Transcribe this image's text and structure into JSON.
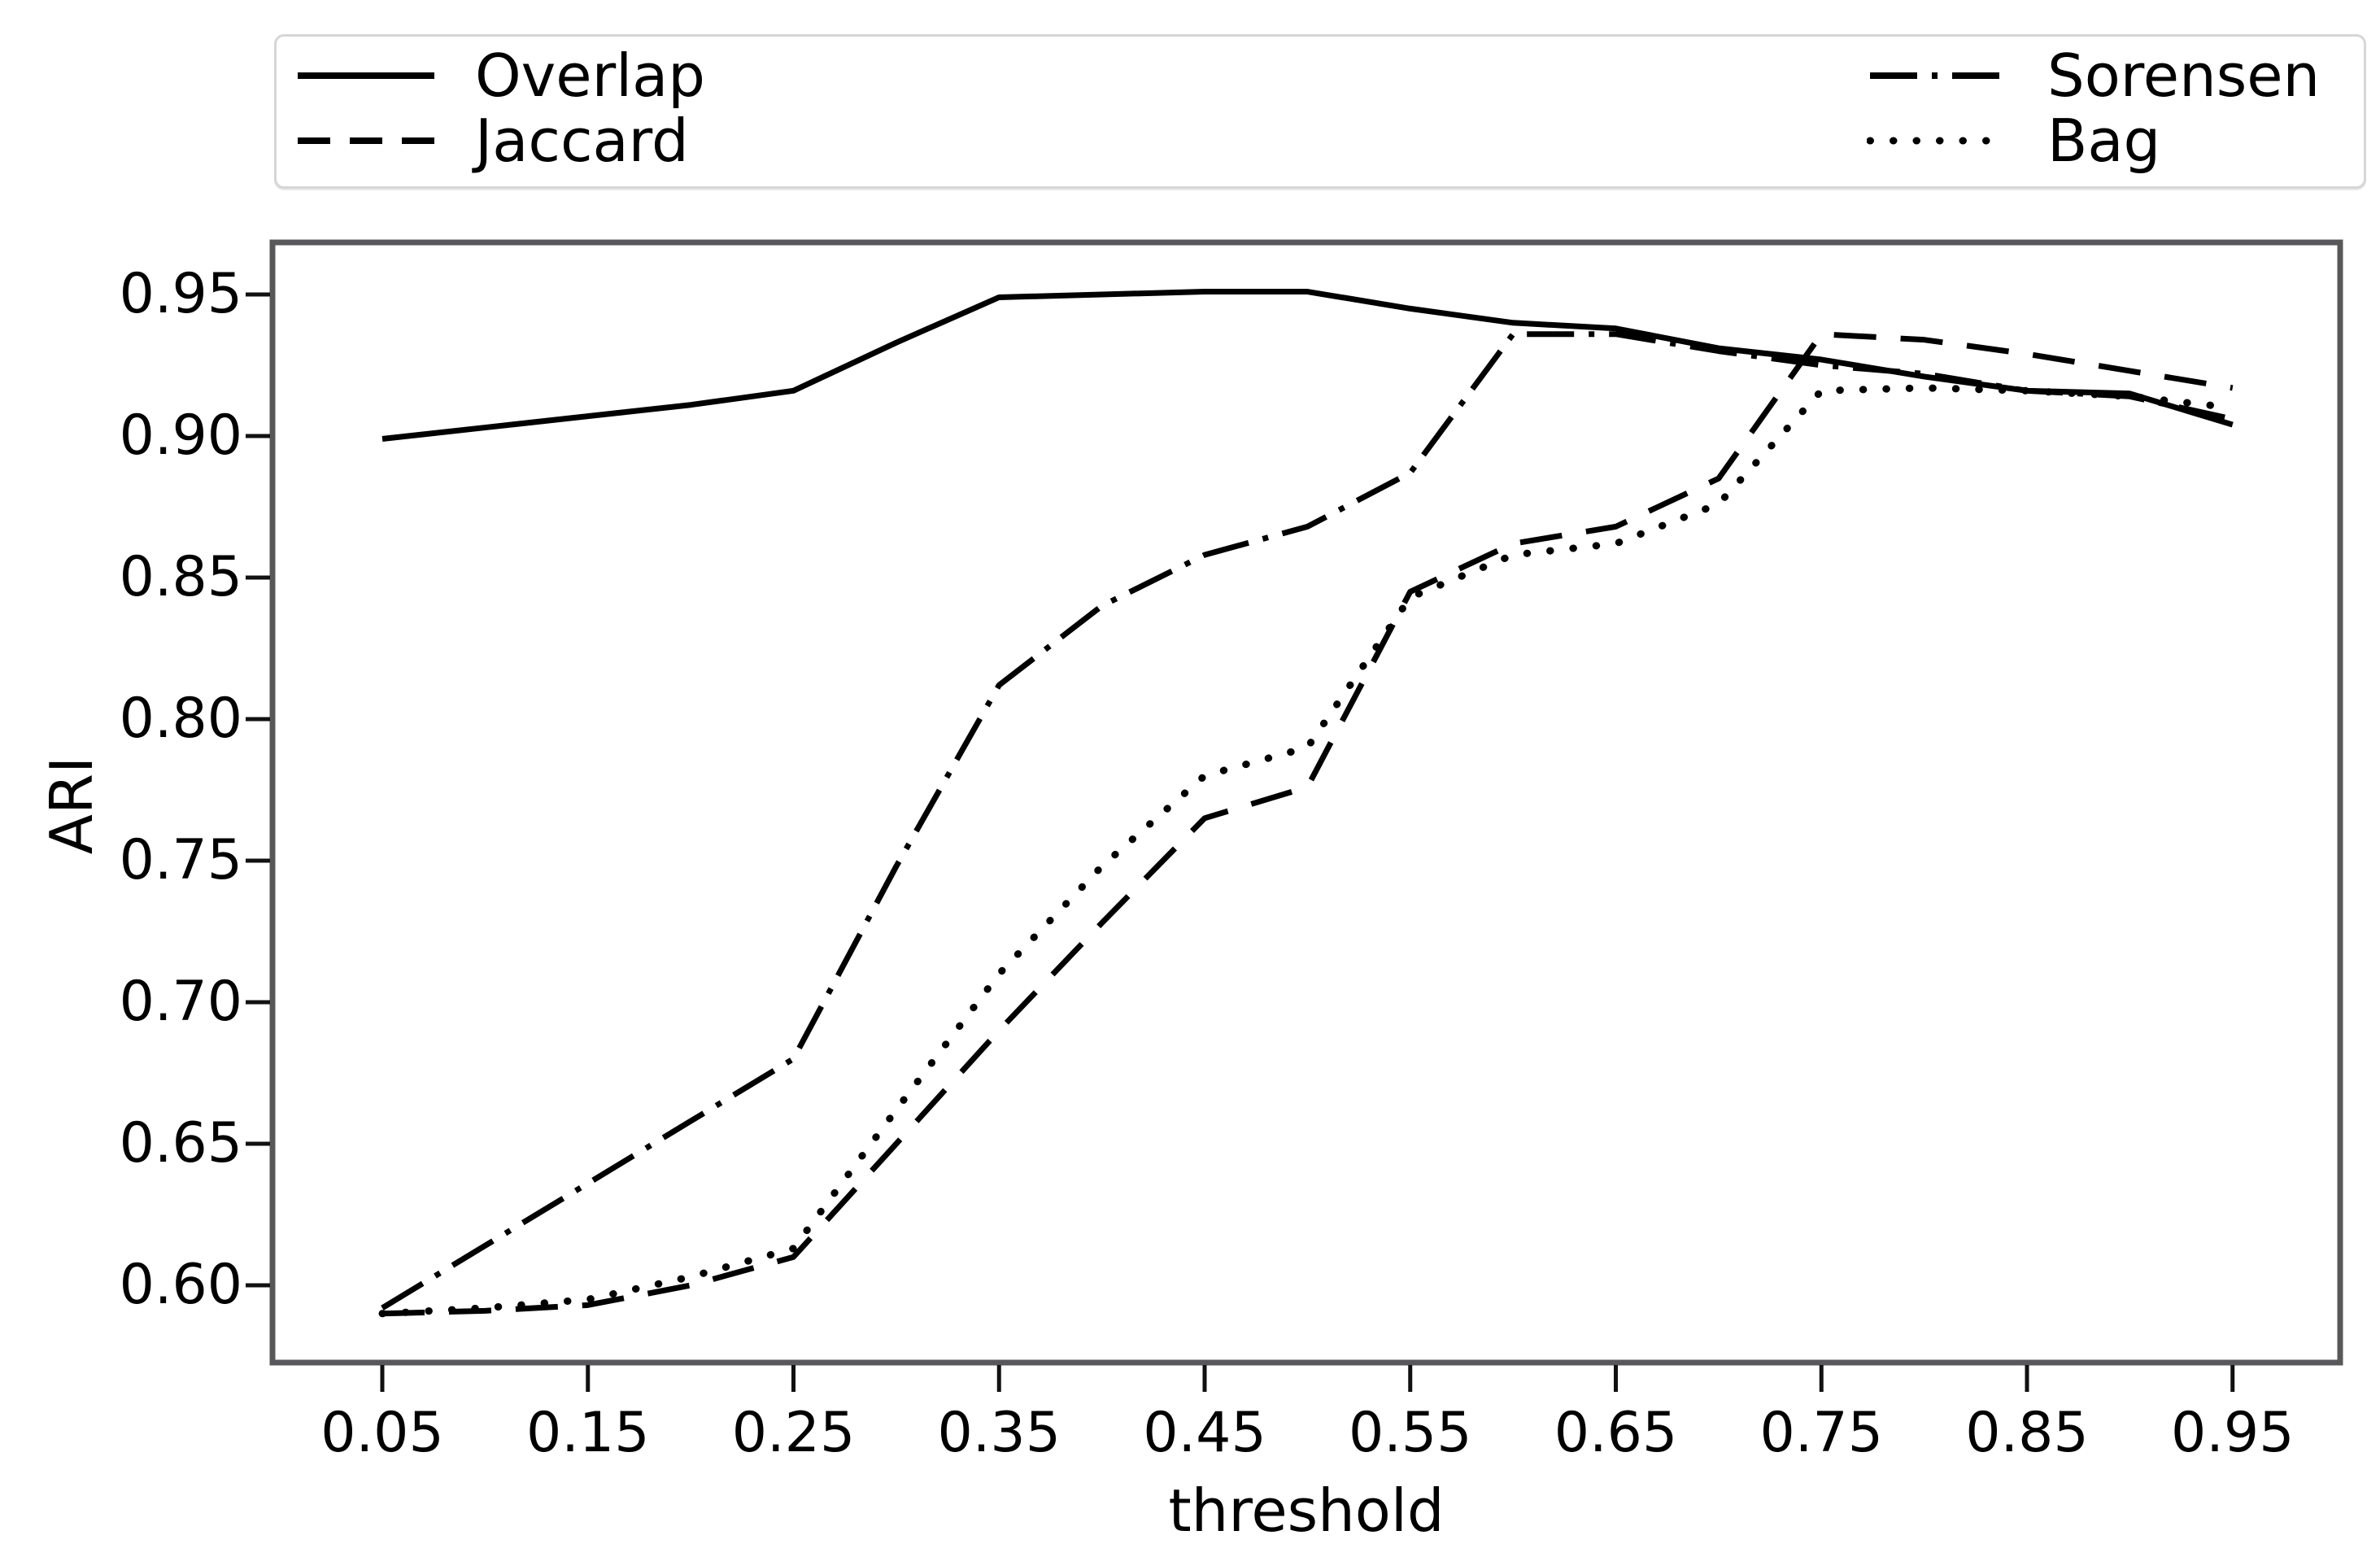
{
  "figure": {
    "background": "#ffffff",
    "line_color": "#000000",
    "frame_color": "#58585a"
  },
  "legend": {
    "items": [
      {
        "label": "Overlap",
        "style": "solid"
      },
      {
        "label": "Jaccard",
        "style": "dashed"
      },
      {
        "label": "Sorensen",
        "style": "dashdot"
      },
      {
        "label": "Bag",
        "style": "dotted"
      }
    ]
  },
  "chart_data": {
    "type": "line",
    "title": "",
    "xlabel": "threshold",
    "ylabel": "ARI",
    "grid": false,
    "legend_position": "top, 2 columns, outside plot",
    "xlim": [
      0.0,
      1.0
    ],
    "ylim": [
      0.573,
      0.968
    ],
    "x_ticks": [
      0.05,
      0.15,
      0.25,
      0.35,
      0.45,
      0.55,
      0.65,
      0.75,
      0.85,
      0.95
    ],
    "x_tick_labels": [
      "0.05",
      "0.15",
      "0.25",
      "0.35",
      "0.45",
      "0.55",
      "0.65",
      "0.75",
      "0.85",
      "0.95"
    ],
    "y_ticks": [
      0.6,
      0.65,
      0.7,
      0.75,
      0.8,
      0.85,
      0.9,
      0.95
    ],
    "y_tick_labels": [
      "0.60",
      "0.65",
      "0.70",
      "0.75",
      "0.80",
      "0.85",
      "0.90",
      "0.95"
    ],
    "x": [
      0.05,
      0.1,
      0.15,
      0.2,
      0.25,
      0.3,
      0.35,
      0.4,
      0.45,
      0.5,
      0.55,
      0.6,
      0.65,
      0.7,
      0.75,
      0.8,
      0.85,
      0.9,
      0.95
    ],
    "series": [
      {
        "name": "Overlap",
        "style": "solid",
        "values": [
          0.899,
          0.903,
          0.907,
          0.911,
          0.916,
          0.933,
          0.949,
          0.95,
          0.951,
          0.951,
          0.945,
          0.94,
          0.938,
          0.931,
          0.927,
          0.921,
          0.916,
          0.915,
          0.904
        ]
      },
      {
        "name": "Jaccard",
        "style": "dashed",
        "values": [
          0.59,
          0.591,
          0.593,
          0.6,
          0.61,
          0.65,
          0.69,
          0.728,
          0.765,
          0.776,
          0.845,
          0.862,
          0.868,
          0.885,
          0.936,
          0.934,
          0.929,
          0.923,
          0.917
        ]
      },
      {
        "name": "Sorensen",
        "style": "dashdot",
        "values": [
          0.592,
          0.614,
          0.636,
          0.658,
          0.68,
          0.748,
          0.812,
          0.84,
          0.858,
          0.868,
          0.887,
          0.936,
          0.936,
          0.93,
          0.925,
          0.922,
          0.916,
          0.914,
          0.906
        ]
      },
      {
        "name": "Bag",
        "style": "dotted",
        "values": [
          0.59,
          0.592,
          0.595,
          0.603,
          0.613,
          0.662,
          0.71,
          0.748,
          0.78,
          0.79,
          0.843,
          0.858,
          0.862,
          0.876,
          0.916,
          0.917,
          0.916,
          0.914,
          0.91
        ]
      }
    ]
  }
}
